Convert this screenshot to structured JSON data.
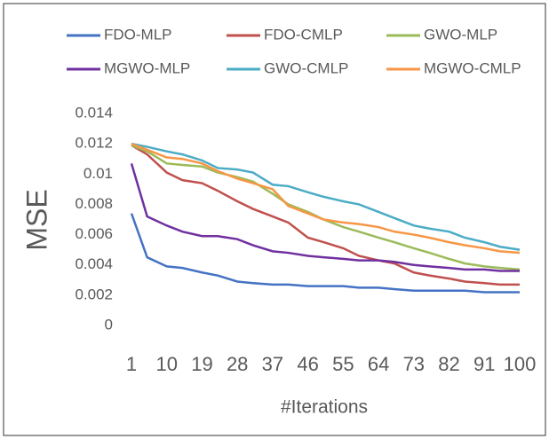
{
  "chart_data": {
    "type": "line",
    "ylabel": "MSE",
    "xlabel": "#Iterations",
    "x": [
      1,
      5,
      10,
      14,
      19,
      23,
      28,
      32,
      37,
      41,
      46,
      50,
      55,
      59,
      64,
      68,
      73,
      77,
      82,
      86,
      91,
      95,
      100
    ],
    "series": [
      {
        "name": "FDO-MLP",
        "color": "#4472c4",
        "values": [
          0.0074,
          0.0045,
          0.0039,
          0.0038,
          0.0035,
          0.0033,
          0.0029,
          0.0028,
          0.0027,
          0.0027,
          0.0026,
          0.0026,
          0.0026,
          0.0025,
          0.0025,
          0.0024,
          0.0023,
          0.0023,
          0.0023,
          0.0023,
          0.0022,
          0.0022,
          0.0022
        ]
      },
      {
        "name": "FDO-CMLP",
        "color": "#c0504d",
        "values": [
          0.0119,
          0.0113,
          0.0101,
          0.0096,
          0.0094,
          0.0089,
          0.0082,
          0.0077,
          0.0072,
          0.0068,
          0.0058,
          0.0055,
          0.0051,
          0.0046,
          0.0043,
          0.0041,
          0.0035,
          0.0033,
          0.0031,
          0.0029,
          0.0028,
          0.0027,
          0.0027
        ]
      },
      {
        "name": "GWO-MLP",
        "color": "#9bbb59",
        "values": [
          0.0119,
          0.0115,
          0.0107,
          0.0106,
          0.0105,
          0.0101,
          0.0098,
          0.0095,
          0.0087,
          0.008,
          0.0075,
          0.007,
          0.0065,
          0.0062,
          0.0058,
          0.0055,
          0.0051,
          0.0048,
          0.0044,
          0.0041,
          0.0039,
          0.0038,
          0.0037
        ]
      },
      {
        "name": "MGWO-MLP",
        "color": "#7030a0",
        "values": [
          0.0107,
          0.0072,
          0.0066,
          0.0062,
          0.0059,
          0.0059,
          0.0057,
          0.0053,
          0.0049,
          0.0048,
          0.0046,
          0.0045,
          0.0044,
          0.0043,
          0.0043,
          0.0042,
          0.004,
          0.0039,
          0.0038,
          0.0037,
          0.0037,
          0.0036,
          0.0036
        ]
      },
      {
        "name": "GWO-CMLP",
        "color": "#4bacc6",
        "values": [
          0.012,
          0.0118,
          0.0115,
          0.0113,
          0.0109,
          0.0104,
          0.0103,
          0.0101,
          0.0093,
          0.0092,
          0.0088,
          0.0085,
          0.0082,
          0.008,
          0.0075,
          0.0071,
          0.0066,
          0.0064,
          0.0062,
          0.0058,
          0.0055,
          0.0052,
          0.005
        ]
      },
      {
        "name": "MGWO-CMLP",
        "color": "#f79646",
        "values": [
          0.012,
          0.0116,
          0.0111,
          0.011,
          0.0107,
          0.0102,
          0.0097,
          0.0094,
          0.009,
          0.0079,
          0.0074,
          0.007,
          0.0068,
          0.0067,
          0.0065,
          0.0062,
          0.006,
          0.0058,
          0.0055,
          0.0053,
          0.0051,
          0.0049,
          0.0048
        ]
      }
    ],
    "xlim": [
      1,
      100
    ],
    "xticks": [
      1,
      10,
      19,
      28,
      37,
      46,
      55,
      64,
      73,
      82,
      91,
      100
    ],
    "ylim": [
      0,
      0.014
    ],
    "yticks": [
      0,
      0.002,
      0.004,
      0.006,
      0.008,
      0.01,
      0.012,
      0.014
    ],
    "grid": false,
    "legend": "top"
  }
}
